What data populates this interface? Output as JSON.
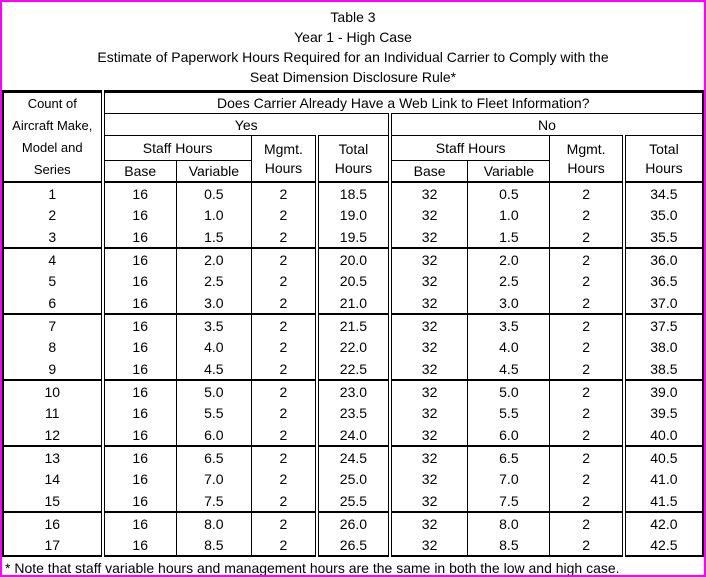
{
  "frame": {
    "border_color": "#FF00FF",
    "background": "#FFFFFF"
  },
  "title": {
    "lines": [
      "Table 3",
      "Year 1 - High Case",
      "Estimate of Paperwork Hours Required for an Individual Carrier to Comply with the",
      "Seat Dimension Disclosure Rule*"
    ]
  },
  "table": {
    "corner_header_lines": [
      "Count of",
      "Aircraft Make,",
      "Model and",
      "Series"
    ],
    "question_header": "Does Carrier Already Have a Web Link to Fleet Information?",
    "group_headers": {
      "yes": "Yes",
      "no": "No"
    },
    "column_headers": {
      "staff_hours": "Staff Hours",
      "base": "Base",
      "variable": "Variable",
      "mgmt_line1": "Mgmt.",
      "mgmt_line2": "Hours",
      "total_line1": "Total",
      "total_line2": "Hours"
    },
    "rows": [
      [
        "1",
        "16",
        "0.5",
        "2",
        "18.5",
        "32",
        "0.5",
        "2",
        "34.5"
      ],
      [
        "2",
        "16",
        "1.0",
        "2",
        "19.0",
        "32",
        "1.0",
        "2",
        "35.0"
      ],
      [
        "3",
        "16",
        "1.5",
        "2",
        "19.5",
        "32",
        "1.5",
        "2",
        "35.5"
      ],
      [
        "4",
        "16",
        "2.0",
        "2",
        "20.0",
        "32",
        "2.0",
        "2",
        "36.0"
      ],
      [
        "5",
        "16",
        "2.5",
        "2",
        "20.5",
        "32",
        "2.5",
        "2",
        "36.5"
      ],
      [
        "6",
        "16",
        "3.0",
        "2",
        "21.0",
        "32",
        "3.0",
        "2",
        "37.0"
      ],
      [
        "7",
        "16",
        "3.5",
        "2",
        "21.5",
        "32",
        "3.5",
        "2",
        "37.5"
      ],
      [
        "8",
        "16",
        "4.0",
        "2",
        "22.0",
        "32",
        "4.0",
        "2",
        "38.0"
      ],
      [
        "9",
        "16",
        "4.5",
        "2",
        "22.5",
        "32",
        "4.5",
        "2",
        "38.5"
      ],
      [
        "10",
        "16",
        "5.0",
        "2",
        "23.0",
        "32",
        "5.0",
        "2",
        "39.0"
      ],
      [
        "11",
        "16",
        "5.5",
        "2",
        "23.5",
        "32",
        "5.5",
        "2",
        "39.5"
      ],
      [
        "12",
        "16",
        "6.0",
        "2",
        "24.0",
        "32",
        "6.0",
        "2",
        "40.0"
      ],
      [
        "13",
        "16",
        "6.5",
        "2",
        "24.5",
        "32",
        "6.5",
        "2",
        "40.5"
      ],
      [
        "14",
        "16",
        "7.0",
        "2",
        "25.0",
        "32",
        "7.0",
        "2",
        "41.0"
      ],
      [
        "15",
        "16",
        "7.5",
        "2",
        "25.5",
        "32",
        "7.5",
        "2",
        "41.5"
      ],
      [
        "16",
        "16",
        "8.0",
        "2",
        "26.0",
        "32",
        "8.0",
        "2",
        "42.0"
      ],
      [
        "17",
        "16",
        "8.5",
        "2",
        "26.5",
        "32",
        "8.5",
        "2",
        "42.5"
      ]
    ]
  },
  "footnote": "* Note that staff variable hours and management hours are the same in both the low and high case."
}
